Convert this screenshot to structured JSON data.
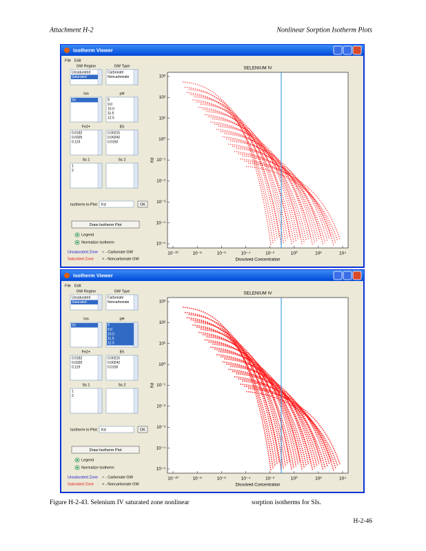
{
  "header": {
    "left": "Attachment H-2",
    "right": "Nonlinear Sorption Isotherm Plots"
  },
  "windows": [
    {
      "title": "Isotherm Viewer",
      "menu": [
        "File",
        "Edit"
      ],
      "lists": [
        {
          "label": "GW Region",
          "items": [
            "Unsaturated",
            "Saturated"
          ],
          "selected": [
            1
          ]
        },
        {
          "label": "GW Type",
          "items": [
            "Carbonate",
            "Noncarbonate"
          ],
          "selected": []
        },
        {
          "label": "Ion",
          "items": [
            "Se"
          ],
          "selected": [
            0
          ]
        },
        {
          "label": "pH",
          "items": [
            "8",
            "9.0",
            "10.0",
            "11.5",
            "12.5"
          ],
          "selected": []
        },
        {
          "label": "Fe2+",
          "items": [
            "0.0182",
            "0.0325",
            "0.119"
          ],
          "selected": []
        },
        {
          "label": "Eh",
          "items": [
            "0.00215",
            "0.00242",
            "0.0150"
          ],
          "selected": []
        },
        {
          "label": "Ss 1",
          "items": [
            "1",
            "2"
          ],
          "selected": []
        },
        {
          "label": "Ss 2",
          "items": [],
          "selected": []
        }
      ],
      "isotherm_label": "Isotherm to Plot:",
      "isotherm_value": "Kd",
      "ok_button": "OK",
      "draw_button": "Draw Isotherm Plot",
      "options": [
        "Legend",
        "Normalize Isotherm"
      ],
      "legend": {
        "unsaturated": "Unsaturated Zone",
        "saturated": "Saturated Zone",
        "carbonate": "○ - Carbonate GW",
        "noncarbonate": "× - Noncarbonate GW"
      },
      "plot": {
        "title": "SELENIUM IV",
        "ylabel": "Kd",
        "xlabel": "Dissolved Concentration",
        "yticks": [
          "10³",
          "10²",
          "10¹",
          "10⁰",
          "10⁻¹",
          "10⁻²",
          "10⁻³",
          "10⁻⁴",
          "10⁻⁵"
        ],
        "xticks": [
          "10⁻¹⁰",
          "10⁻⁸",
          "10⁻⁶",
          "10⁻⁴",
          "10⁻²",
          "10⁰",
          "10²",
          "10⁴"
        ]
      }
    },
    {
      "title": "Isotherm Viewer",
      "menu": [
        "File",
        "Edit"
      ],
      "lists": [
        {
          "label": "GW Region",
          "items": [
            "Unsaturated",
            "Saturated"
          ],
          "selected": [
            1
          ]
        },
        {
          "label": "GW Type",
          "items": [
            "Carbonate",
            "Noncarbonate"
          ],
          "selected": []
        },
        {
          "label": "Ion",
          "items": [
            "Se"
          ],
          "selected": [
            0
          ]
        },
        {
          "label": "pH",
          "items": [
            "8",
            "9.0",
            "10.0",
            "11.5",
            "12.5"
          ],
          "selected": [
            0,
            1,
            2,
            3,
            4
          ]
        },
        {
          "label": "Fe2+",
          "items": [
            "0.0182",
            "0.0325",
            "0.119"
          ],
          "selected": []
        },
        {
          "label": "Eh",
          "items": [
            "0.00215",
            "0.00242",
            "0.0150"
          ],
          "selected": []
        },
        {
          "label": "Ss 1",
          "items": [
            "1",
            "2"
          ],
          "selected": []
        },
        {
          "label": "Ss 2",
          "items": [],
          "selected": []
        }
      ],
      "isotherm_label": "Isotherm to Plot:",
      "isotherm_value": "Kd",
      "ok_button": "OK",
      "draw_button": "Draw Isotherm Plot",
      "options": [
        "Legend",
        "Normalize Isotherm"
      ],
      "legend": {
        "unsaturated": "Unsaturated Zone",
        "saturated": "Saturated Zone",
        "carbonate": "○ - Carbonate GW",
        "noncarbonate": "× - Noncarbonate GW"
      },
      "plot": {
        "title": "SELENIUM IV",
        "ylabel": "Kd",
        "xlabel": "Dissolved Concentration",
        "yticks": [
          "10³",
          "10²",
          "10¹",
          "10⁰",
          "10⁻¹",
          "10⁻²",
          "10⁻³",
          "10⁻⁴",
          "10⁻⁵"
        ],
        "xticks": [
          "10⁻¹⁰",
          "10⁻⁸",
          "10⁻⁶",
          "10⁻⁴",
          "10⁻²",
          "10⁰",
          "10²",
          "10⁴"
        ]
      }
    }
  ],
  "caption": {
    "label": "Figure H-2-43. Selenium IV saturated zone nonlinear",
    "continuation": "sorption isotherms for SIs."
  },
  "page_number": "H-2-46"
}
